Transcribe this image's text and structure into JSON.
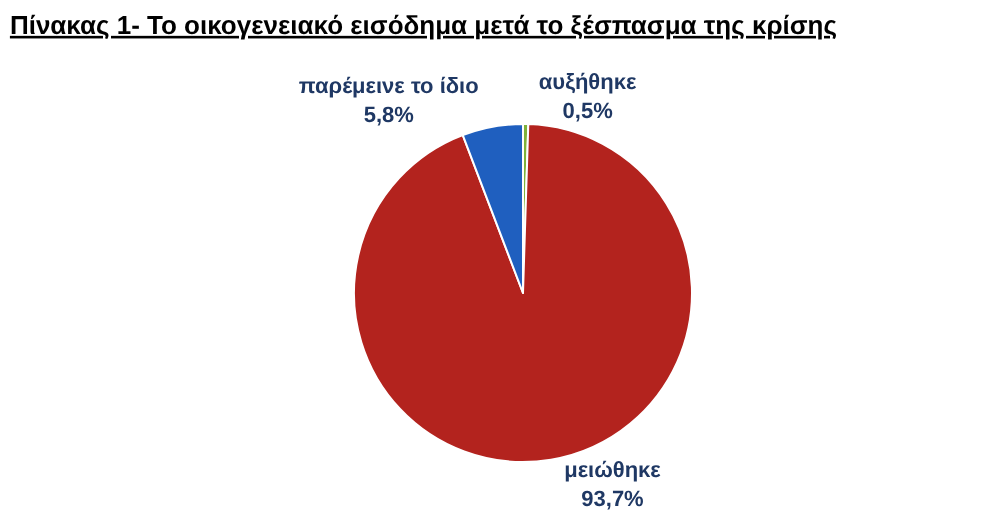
{
  "chart_data": {
    "type": "pie",
    "title": "Πίνακας 1- Το οικογενειακό εισόδημα μετά το ξέσπασμα της κρίσης",
    "categories": [
      "αυξήθηκε",
      "μειώθηκε",
      "παρέμεινε το ίδιο"
    ],
    "values": [
      0.5,
      93.7,
      5.8
    ],
    "value_labels": [
      "0,5%",
      "93,7%",
      "5,8%"
    ],
    "colors": [
      "#7fb23a",
      "#b3231e",
      "#1f5fbf"
    ],
    "legend": false
  }
}
